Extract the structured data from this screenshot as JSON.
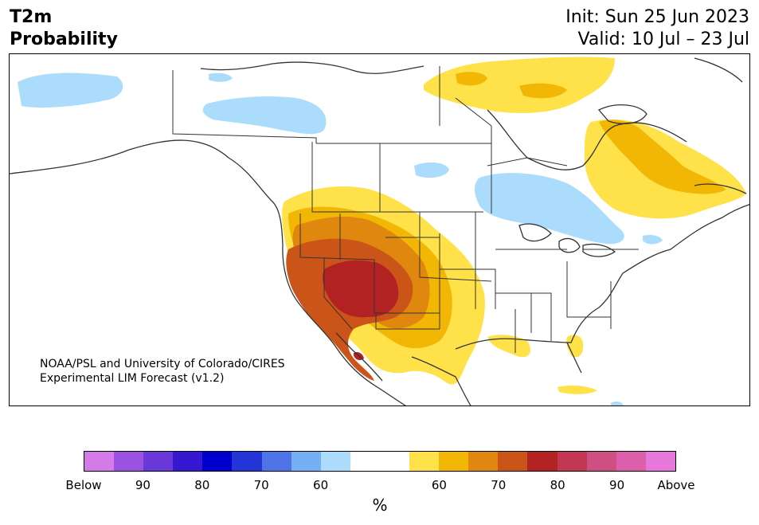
{
  "header": {
    "variable": "T2m",
    "product": "Probability",
    "init": "Init: Sun 25 Jun 2023",
    "valid": "Valid: 10 Jul – 23 Jul"
  },
  "credit": {
    "line1": "NOAA/PSL and University of Colorado/CIRES",
    "line2": "Experimental LIM Forecast (v1.2)"
  },
  "legend": {
    "unit": "%",
    "colors": [
      "#d57ae9",
      "#9b52e0",
      "#6a37d8",
      "#3718d2",
      "#0000cc",
      "#2436d8",
      "#4f74e8",
      "#74b0f3",
      "#acdcfc",
      "#ffffff",
      "#ffffff",
      "#ffe24a",
      "#f2b705",
      "#e0870f",
      "#cb5419",
      "#b22222",
      "#c23752",
      "#d04f82",
      "#db5fab",
      "#e877db"
    ],
    "ticks": [
      {
        "label": "Below",
        "pos": 0
      },
      {
        "label": "90",
        "pos": 2
      },
      {
        "label": "80",
        "pos": 4
      },
      {
        "label": "70",
        "pos": 6
      },
      {
        "label": "60",
        "pos": 8
      },
      {
        "label": "60",
        "pos": 12
      },
      {
        "label": "70",
        "pos": 14
      },
      {
        "label": "80",
        "pos": 16
      },
      {
        "label": "90",
        "pos": 18
      },
      {
        "label": "Above",
        "pos": 20
      }
    ]
  },
  "colors": {
    "below60": "#acdcfc",
    "above60": "#ffe24a",
    "above70": "#f2b705",
    "above80": "#e0870f",
    "above90": "#cb5419",
    "aboveMax": "#b22222",
    "border": "#333333"
  }
}
